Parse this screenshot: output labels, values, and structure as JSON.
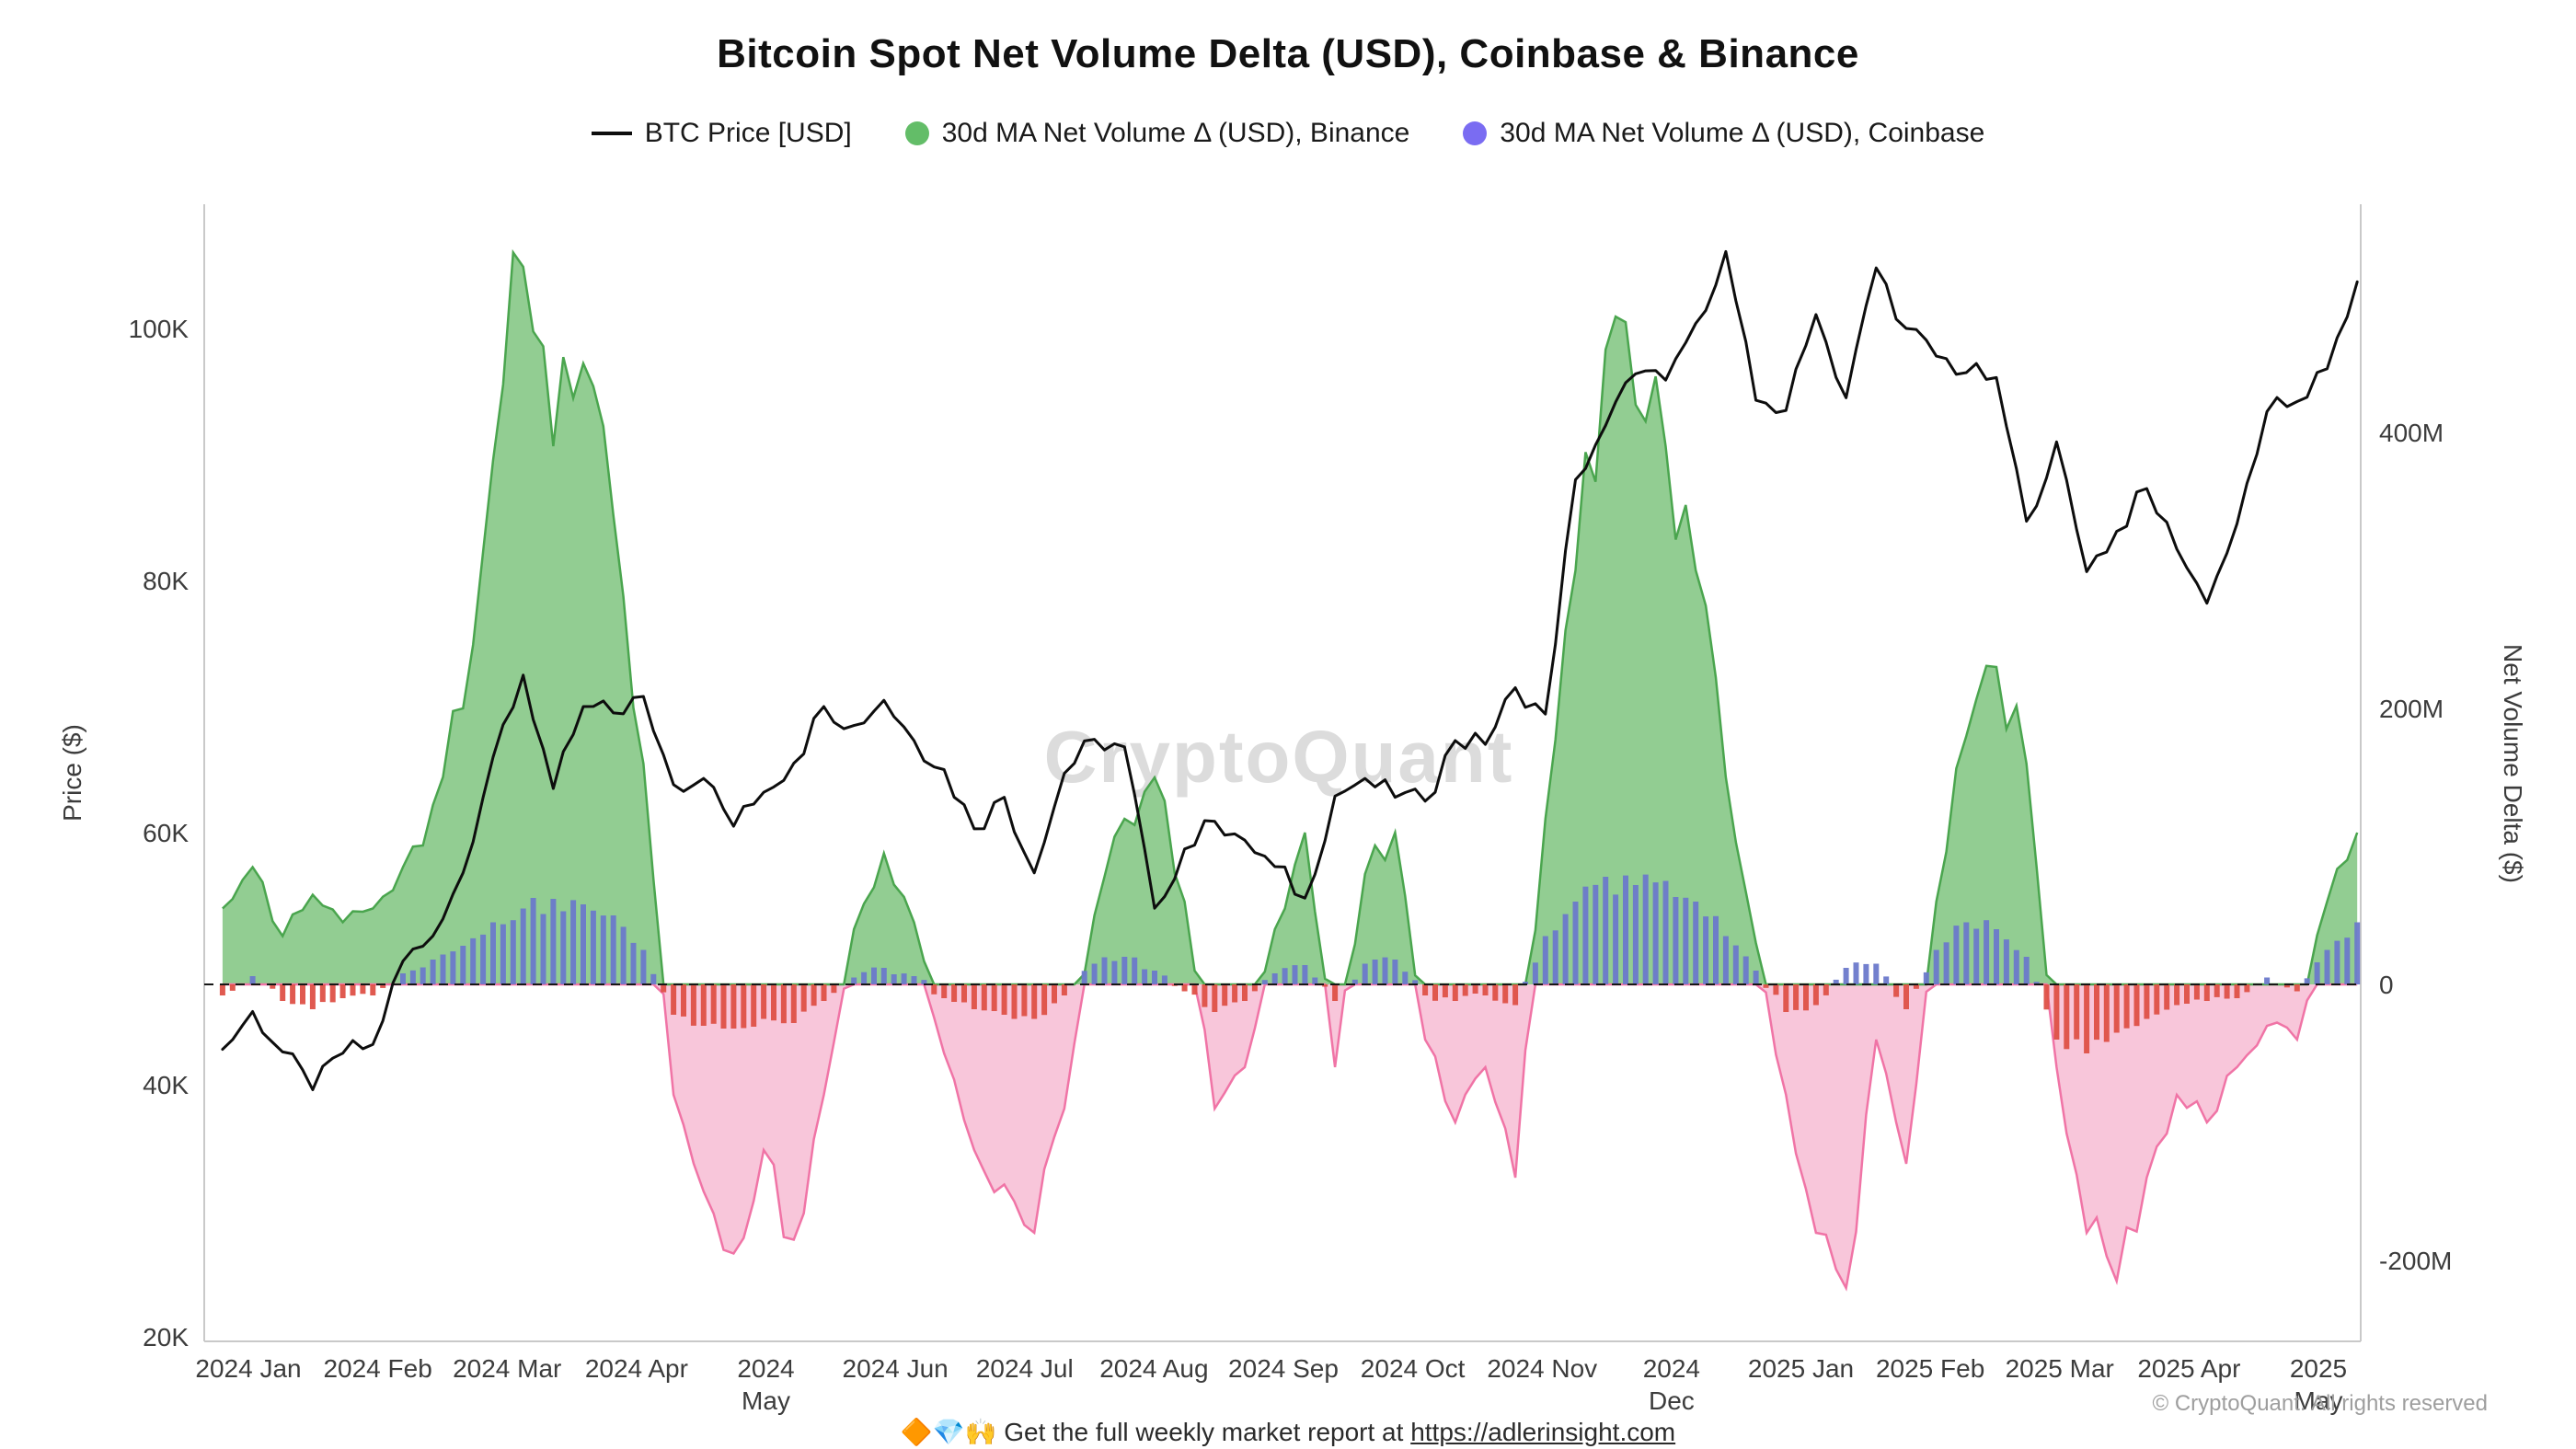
{
  "title": "Bitcoin Spot Net Volume Delta (USD), Coinbase & Binance",
  "watermark": "CryptoQuant",
  "legend": [
    {
      "label": "BTC Price [USD]",
      "swatch": "line",
      "color": "#0d0d0d"
    },
    {
      "label": "30d MA Net Volume Δ (USD), Binance",
      "swatch": "dot",
      "color": "#63bd68"
    },
    {
      "label": "30d MA Net Volume Δ (USD), Coinbase",
      "swatch": "dot",
      "color": "#7a6cf2"
    }
  ],
  "footer": {
    "emoji": "🔶💎🙌",
    "text": "Get the full weekly market report at",
    "link": "https://adlerinsight.com"
  },
  "copyright": "© CryptoQuant. All rights reserved",
  "chart_data": {
    "type": "mixed",
    "x_unit": "months from 2024-01",
    "t_start": -0.2,
    "t_step": 0.232394,
    "price_axis": {
      "title": "Price ($)",
      "min": 20,
      "max": 110,
      "ticks": [
        20,
        40,
        60,
        80,
        100
      ],
      "tick_labels": [
        "20K",
        "40K",
        "60K",
        "80K",
        "100K"
      ]
    },
    "volume_axis": {
      "title": "Net Volume Delta ($)",
      "min": -260,
      "max": 565,
      "ticks": [
        -200,
        0,
        200,
        400
      ],
      "tick_labels": [
        "-200M",
        "0",
        "200M",
        "400M"
      ]
    },
    "x_ticks": [
      {
        "l1": "2024 Jan",
        "l2": ""
      },
      {
        "l1": "2024 Feb",
        "l2": ""
      },
      {
        "l1": "2024 Mar",
        "l2": ""
      },
      {
        "l1": "2024 Apr",
        "l2": ""
      },
      {
        "l1": "2024",
        "l2": "May"
      },
      {
        "l1": "2024 Jun",
        "l2": ""
      },
      {
        "l1": "2024 Jul",
        "l2": ""
      },
      {
        "l1": "2024 Aug",
        "l2": ""
      },
      {
        "l1": "2024 Sep",
        "l2": ""
      },
      {
        "l1": "2024 Oct",
        "l2": ""
      },
      {
        "l1": "2024 Nov",
        "l2": ""
      },
      {
        "l1": "2024",
        "l2": "Dec"
      },
      {
        "l1": "2025 Jan",
        "l2": ""
      },
      {
        "l1": "2025 Feb",
        "l2": ""
      },
      {
        "l1": "2025 Mar",
        "l2": ""
      },
      {
        "l1": "2025 Apr",
        "l2": ""
      },
      {
        "l1": "2025",
        "l2": "May"
      }
    ],
    "series": [
      {
        "name": "BTC Price [USD]",
        "type": "line",
        "axis": "price",
        "unit": "thousand USD",
        "color": "#0d0d0d",
        "values": [
          42.8,
          45.8,
          42.6,
          39.6,
          42.5,
          43.2,
          49.8,
          51.8,
          56.8,
          66.0,
          72.5,
          63.5,
          70.0,
          69.5,
          70.8,
          63.8,
          64.3,
          60.5,
          63.2,
          65.5,
          70.0,
          68.5,
          70.5,
          67.3,
          65.0,
          60.3,
          62.8,
          56.8,
          64.7,
          67.4,
          66.8,
          54.0,
          58.7,
          60.9,
          59.4,
          57.3,
          54.8,
          62.9,
          64.3,
          62.8,
          62.5,
          67.3,
          67.0,
          71.5,
          69.4,
          88.0,
          92.3,
          96.4,
          95.9,
          100.4,
          106.1,
          94.3,
          93.5,
          101.1,
          94.5,
          104.8,
          100.0,
          97.8,
          96.5,
          96.1,
          84.7,
          91.0,
          80.7,
          83.9,
          87.3,
          82.5,
          78.2,
          84.5,
          93.4,
          94.2,
          96.8,
          103.7
        ]
      },
      {
        "name": "30d MA Net Volume Δ (USD), Binance",
        "type": "area",
        "axis": "volume",
        "unit": "million USD",
        "color_pos": "#86c886",
        "color_neg": "#f7bcd4",
        "stroke_pos": "#4aa54e",
        "stroke_neg": "#f074a6",
        "values": [
          55,
          85,
          35,
          65,
          45,
          55,
          85,
          130,
          200,
          380,
          520,
          390,
          450,
          340,
          160,
          -80,
          -150,
          -195,
          -120,
          -185,
          -80,
          40,
          95,
          45,
          -50,
          -120,
          -145,
          -180,
          -90,
          50,
          120,
          150,
          60,
          -90,
          -60,
          40,
          110,
          -60,
          80,
          110,
          -40,
          -100,
          -60,
          -140,
          120,
          300,
          460,
          420,
          390,
          300,
          150,
          30,
          -80,
          -180,
          -220,
          -40,
          -130,
          60,
          180,
          230,
          160,
          -60,
          -180,
          -215,
          -140,
          -80,
          -100,
          -60,
          -30,
          -40,
          60,
          110
        ]
      },
      {
        "name": "30d MA Net Volume Δ (USD), Coinbase",
        "type": "bar",
        "axis": "volume",
        "unit": "million USD",
        "color_pos": "#6b79cb",
        "color_neg": "#de5147",
        "values": [
          -8,
          6,
          -12,
          -18,
          -10,
          -8,
          8,
          18,
          28,
          45,
          55,
          62,
          58,
          50,
          25,
          -22,
          -30,
          -32,
          -25,
          -28,
          -12,
          5,
          12,
          6,
          -10,
          -18,
          -22,
          -25,
          -8,
          15,
          20,
          10,
          -5,
          -20,
          -12,
          8,
          14,
          -12,
          15,
          18,
          -8,
          -12,
          -8,
          -15,
          35,
          60,
          78,
          72,
          75,
          60,
          35,
          10,
          -20,
          -15,
          12,
          15,
          -18,
          25,
          45,
          40,
          20,
          -40,
          -50,
          -35,
          -25,
          -15,
          -12,
          -10,
          5,
          -5,
          25,
          45
        ]
      }
    ]
  }
}
